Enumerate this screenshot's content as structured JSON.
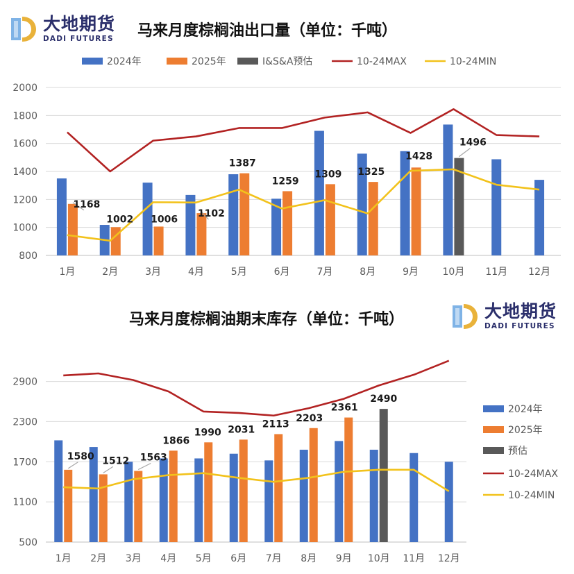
{
  "logo": {
    "cn": "大地期货",
    "en": "DADI FUTURES"
  },
  "colors": {
    "s2024": "#4472c4",
    "s2025": "#ed7d31",
    "estimate": "#595959",
    "max": "#b22222",
    "min": "#f2c21b",
    "grid": "#d9d9d9",
    "axis_text": "#595959"
  },
  "chart_data": [
    {
      "type": "bar",
      "title": "马来月度棕榈油出口量（单位：千吨）",
      "categories": [
        "1月",
        "2月",
        "3月",
        "4月",
        "5月",
        "6月",
        "7月",
        "8月",
        "9月",
        "10月",
        "11月",
        "12月"
      ],
      "ylim": [
        800,
        2000
      ],
      "yticks": [
        800,
        1000,
        1200,
        1400,
        1600,
        1800,
        2000
      ],
      "grid": true,
      "legend_position": "top",
      "series": [
        {
          "name": "2024年",
          "kind": "bar",
          "color": "#4472c4",
          "values": [
            1350,
            1018,
            1320,
            1232,
            1380,
            1205,
            1690,
            1527,
            1545,
            1735,
            1487,
            1340
          ]
        },
        {
          "name": "2025年",
          "kind": "bar",
          "color": "#ed7d31",
          "values": [
            1168,
            1002,
            1006,
            1102,
            1387,
            1259,
            1309,
            1325,
            1428,
            null,
            null,
            null
          ]
        },
        {
          "name": "I&S&A预估",
          "kind": "bar",
          "color": "#595959",
          "values": [
            null,
            null,
            null,
            null,
            null,
            null,
            null,
            null,
            null,
            1496,
            null,
            null
          ]
        },
        {
          "name": "10-24MAX",
          "kind": "line",
          "color": "#b22222",
          "values": [
            1680,
            1400,
            1620,
            1650,
            1710,
            1710,
            1785,
            1822,
            1675,
            1845,
            1660,
            1650
          ]
        },
        {
          "name": "10-24MIN",
          "kind": "line",
          "color": "#f2c21b",
          "values": [
            945,
            905,
            1180,
            1178,
            1270,
            1135,
            1195,
            1100,
            1405,
            1415,
            1305,
            1270
          ]
        }
      ],
      "data_labels": [
        "1168",
        "1002",
        "1006",
        "1102",
        "1387",
        "1259",
        "1309",
        "1325",
        "1428",
        "1496"
      ]
    },
    {
      "type": "bar",
      "title": "马来月度棕榈油期末库存（单位：千吨）",
      "categories": [
        "1月",
        "2月",
        "3月",
        "4月",
        "5月",
        "6月",
        "7月",
        "8月",
        "9月",
        "10月",
        "11月",
        "12月"
      ],
      "ylim": [
        500,
        3300
      ],
      "yticks": [
        500,
        1100,
        1700,
        2300,
        2900
      ],
      "grid": true,
      "legend_position": "right",
      "series": [
        {
          "name": "2024年",
          "kind": "bar",
          "color": "#4472c4",
          "values": [
            2020,
            1920,
            1700,
            1750,
            1750,
            1820,
            1720,
            1880,
            2010,
            1880,
            1830,
            1700
          ]
        },
        {
          "name": "2025年",
          "kind": "bar",
          "color": "#ed7d31",
          "values": [
            1580,
            1512,
            1563,
            1866,
            1990,
            2031,
            2113,
            2203,
            2361,
            null,
            null,
            null
          ]
        },
        {
          "name": "预估",
          "kind": "bar",
          "color": "#595959",
          "values": [
            null,
            null,
            null,
            null,
            null,
            null,
            null,
            null,
            null,
            2490,
            null,
            null
          ]
        },
        {
          "name": "10-24MAX",
          "kind": "line",
          "color": "#b22222",
          "values": [
            2990,
            3020,
            2920,
            2750,
            2450,
            2430,
            2390,
            2500,
            2640,
            2840,
            3000,
            3210
          ]
        },
        {
          "name": "10-24MIN",
          "kind": "line",
          "color": "#f2c21b",
          "values": [
            1320,
            1300,
            1440,
            1500,
            1530,
            1460,
            1400,
            1460,
            1550,
            1580,
            1580,
            1260
          ]
        }
      ],
      "data_labels": [
        "1580",
        "1512",
        "1563",
        "1866",
        "1990",
        "2031",
        "2113",
        "2203",
        "2361",
        "2490"
      ]
    }
  ]
}
